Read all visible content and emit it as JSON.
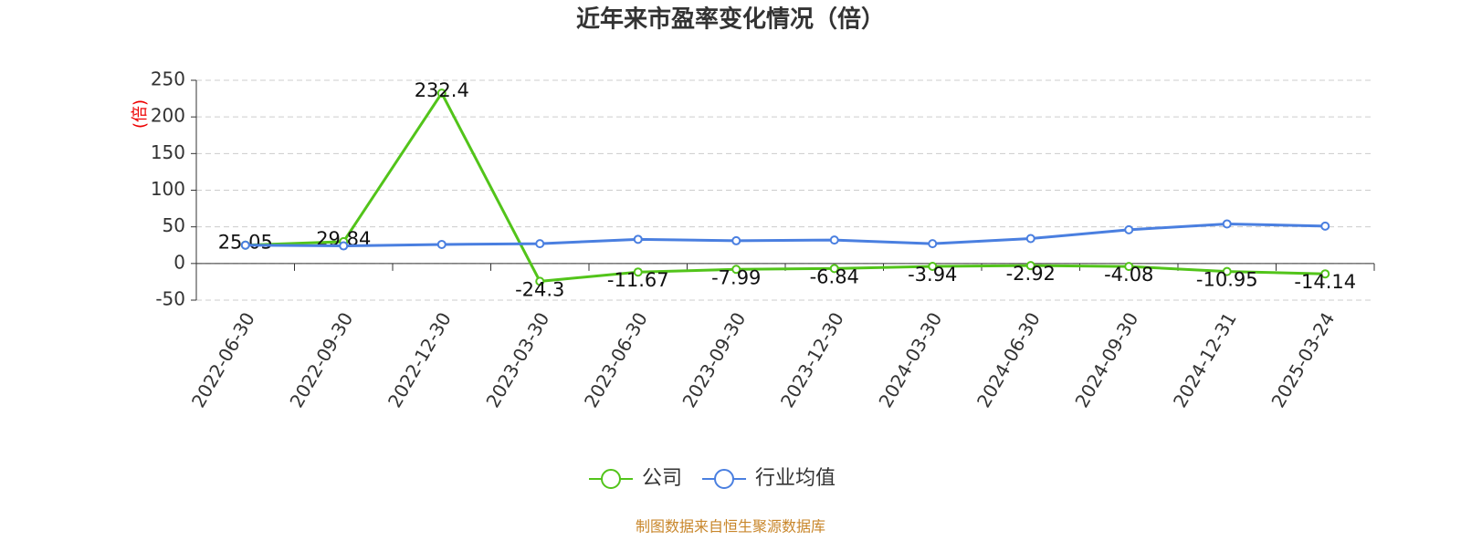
{
  "chart_data": {
    "type": "line",
    "title": "近年来市盈率变化情况（倍）",
    "y_label": "(倍)",
    "source": "制图数据来自恒生聚源数据库",
    "categories": [
      "2022-06-30",
      "2022-09-30",
      "2022-12-30",
      "2023-03-30",
      "2023-06-30",
      "2023-09-30",
      "2023-12-30",
      "2024-03-30",
      "2024-06-30",
      "2024-09-30",
      "2024-12-31",
      "2025-03-24"
    ],
    "series": [
      {
        "name": "公司",
        "color": "#52c41a",
        "values": [
          25.05,
          29.84,
          232.4,
          -24.3,
          -11.67,
          -7.99,
          -6.84,
          -3.94,
          -2.92,
          -4.08,
          -10.95,
          -14.14
        ],
        "show_labels": true
      },
      {
        "name": "行业均值",
        "color": "#4a7fe0",
        "values": [
          25,
          24,
          26,
          27,
          33,
          31,
          32,
          27,
          34,
          46,
          54,
          51
        ],
        "show_labels": false
      }
    ],
    "ylim": [
      -50,
      250
    ],
    "yticks": [
      -50,
      0,
      50,
      100,
      150,
      200,
      250
    ],
    "grid": true
  }
}
